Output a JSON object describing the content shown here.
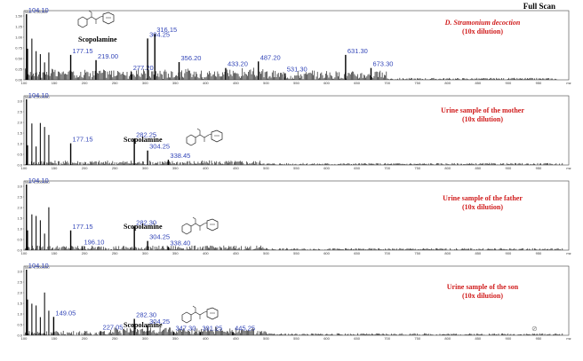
{
  "header_title": "Full Scan",
  "watermark_glyph": "⊘",
  "chart_data": [
    {
      "type": "bar",
      "title_line1": "D. Stramonium decoction",
      "title_line2": "(10x dilution)",
      "compound_label": "Scopolamine",
      "xlim": [
        100,
        1000
      ],
      "ylim_label": "Max. 4.06,000",
      "y_ticks": [
        "1.50",
        "1.25",
        "1.00",
        "0.75",
        "0.50",
        "0.25",
        "0.00"
      ],
      "x_ticks": [
        "100",
        "150",
        "200",
        "250",
        "300",
        "350",
        "400",
        "450",
        "500",
        "550",
        "600",
        "650",
        "700",
        "750",
        "800",
        "850",
        "900",
        "950",
        "mz"
      ],
      "peaks": [
        {
          "mz": 104.1,
          "rel": 1.0,
          "label": "104.10"
        },
        {
          "mz": 177.15,
          "rel": 0.38,
          "label": "177.15"
        },
        {
          "mz": 219.0,
          "rel": 0.3,
          "label": "219.00"
        },
        {
          "mz": 277.2,
          "rel": 0.12,
          "label": "277.20"
        },
        {
          "mz": 304.25,
          "rel": 0.63,
          "label": "304.25"
        },
        {
          "mz": 316.15,
          "rel": 0.7,
          "label": "316.15"
        },
        {
          "mz": 356.2,
          "rel": 0.27,
          "label": "356.20"
        },
        {
          "mz": 433.2,
          "rel": 0.18,
          "label": "433.20"
        },
        {
          "mz": 487.2,
          "rel": 0.28,
          "label": "487.20"
        },
        {
          "mz": 531.3,
          "rel": 0.1,
          "label": "531.30"
        },
        {
          "mz": 631.3,
          "rel": 0.38,
          "label": "631.30"
        },
        {
          "mz": 673.3,
          "rel": 0.18,
          "label": "673.30"
        }
      ]
    },
    {
      "type": "bar",
      "title_line1": "Urine sample of the mother",
      "title_line2": "(10x dilution)",
      "compound_label": "Scopolamine",
      "xlim": [
        100,
        1000
      ],
      "ylim_label": "Max. 1,000,000",
      "y_ticks": [
        "3.0",
        "2.5",
        "2.0",
        "1.5",
        "1.0",
        "0.5",
        "0.0"
      ],
      "x_ticks": [
        "100",
        "150",
        "200",
        "250",
        "300",
        "350",
        "400",
        "450",
        "500",
        "550",
        "600",
        "650",
        "700",
        "750",
        "800",
        "850",
        "900",
        "950",
        "mz"
      ],
      "peaks": [
        {
          "mz": 104.1,
          "rel": 1.0,
          "label": "104.10"
        },
        {
          "mz": 177.15,
          "rel": 0.33,
          "label": "177.15"
        },
        {
          "mz": 282.25,
          "rel": 0.4,
          "label": "282.25"
        },
        {
          "mz": 304.25,
          "rel": 0.22,
          "label": "304.25"
        },
        {
          "mz": 338.45,
          "rel": 0.08,
          "label": "338.45"
        }
      ]
    },
    {
      "type": "bar",
      "title_line1": "Urine sample of the father",
      "title_line2": "(10x dilution)",
      "compound_label": "Scopolamine",
      "xlim": [
        100,
        1000
      ],
      "ylim_label": "Max. 1,000,000",
      "y_ticks": [
        "3.0",
        "2.5",
        "2.0",
        "1.5",
        "1.0",
        "0.5",
        "0.0"
      ],
      "x_ticks": [
        "100",
        "150",
        "200",
        "250",
        "300",
        "350",
        "400",
        "450",
        "500",
        "550",
        "600",
        "650",
        "700",
        "750",
        "800",
        "850",
        "900",
        "950",
        "mz"
      ],
      "peaks": [
        {
          "mz": 104.1,
          "rel": 1.0,
          "label": "104.10"
        },
        {
          "mz": 177.15,
          "rel": 0.3,
          "label": "177.15"
        },
        {
          "mz": 196.1,
          "rel": 0.06,
          "label": "196.10"
        },
        {
          "mz": 282.3,
          "rel": 0.36,
          "label": "282.30"
        },
        {
          "mz": 304.25,
          "rel": 0.14,
          "label": "304.25"
        },
        {
          "mz": 338.4,
          "rel": 0.05,
          "label": "338.40"
        }
      ]
    },
    {
      "type": "bar",
      "title_line1": "Urine sample of the son",
      "title_line2": "(10x dilution)",
      "compound_label": "Scopolamine",
      "xlim": [
        100,
        1000
      ],
      "ylim_label": "Max. 1,000,000",
      "y_ticks": [
        "3.0",
        "2.5",
        "2.0",
        "1.5",
        "1.0",
        "0.5",
        "0.0"
      ],
      "x_ticks": [
        "100",
        "150",
        "200",
        "250",
        "300",
        "350",
        "400",
        "450",
        "500",
        "550",
        "600",
        "650",
        "700",
        "750",
        "800",
        "850",
        "900",
        "950",
        "mz"
      ],
      "peaks": [
        {
          "mz": 104.1,
          "rel": 1.0,
          "label": "104.10"
        },
        {
          "mz": 149.05,
          "rel": 0.28,
          "label": "149.05"
        },
        {
          "mz": 227.05,
          "rel": 0.06,
          "label": "227.05"
        },
        {
          "mz": 282.3,
          "rel": 0.25,
          "label": "282.30"
        },
        {
          "mz": 304.25,
          "rel": 0.15,
          "label": "304.25"
        },
        {
          "mz": 347.3,
          "rel": 0.05,
          "label": "347.30"
        },
        {
          "mz": 391.25,
          "rel": 0.05,
          "label": "391.25"
        },
        {
          "mz": 445.25,
          "rel": 0.05,
          "label": "445.25"
        }
      ]
    }
  ]
}
